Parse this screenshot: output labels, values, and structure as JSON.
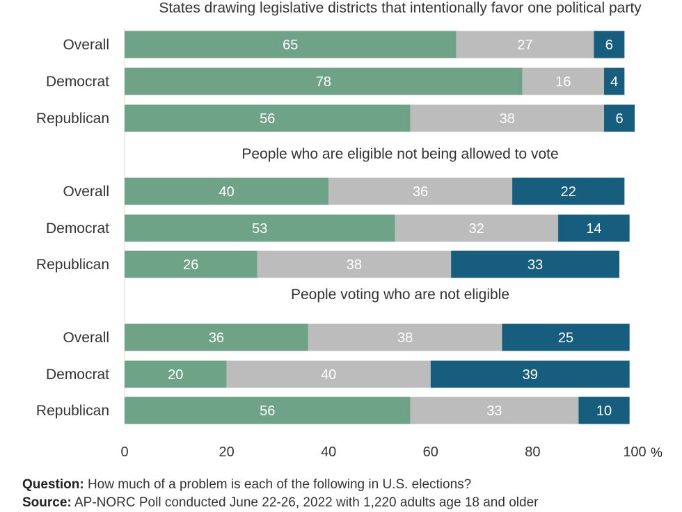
{
  "chart_data": {
    "type": "bar",
    "orientation": "horizontal",
    "stacked": true,
    "categories": [
      "Overall",
      "Democrat",
      "Republican"
    ],
    "xlim": [
      0,
      100
    ],
    "x_ticks": [
      0,
      20,
      40,
      60,
      80,
      100
    ],
    "x_unit": "%",
    "grid": false,
    "series_colors": [
      "#6fa387",
      "#bcbcbc",
      "#175e7e"
    ],
    "panels": [
      {
        "title": "States drawing legislative districts that intentionally favor one political party",
        "values": [
          [
            65,
            27,
            6
          ],
          [
            78,
            16,
            4
          ],
          [
            56,
            38,
            6
          ]
        ]
      },
      {
        "title": "People who are eligible not being allowed to vote",
        "values": [
          [
            40,
            36,
            22
          ],
          [
            53,
            32,
            14
          ],
          [
            26,
            38,
            33
          ]
        ]
      },
      {
        "title": "People voting who are not eligible",
        "values": [
          [
            36,
            38,
            25
          ],
          [
            20,
            40,
            39
          ],
          [
            56,
            33,
            10
          ]
        ]
      }
    ]
  },
  "footer": {
    "question_label": "Question:",
    "question_text": "How much of a problem is each of the following in U.S. elections?",
    "source_label": "Source:",
    "source_text": "AP-NORC Poll conducted June 22-26, 2022 with 1,220 adults age 18 and older"
  }
}
